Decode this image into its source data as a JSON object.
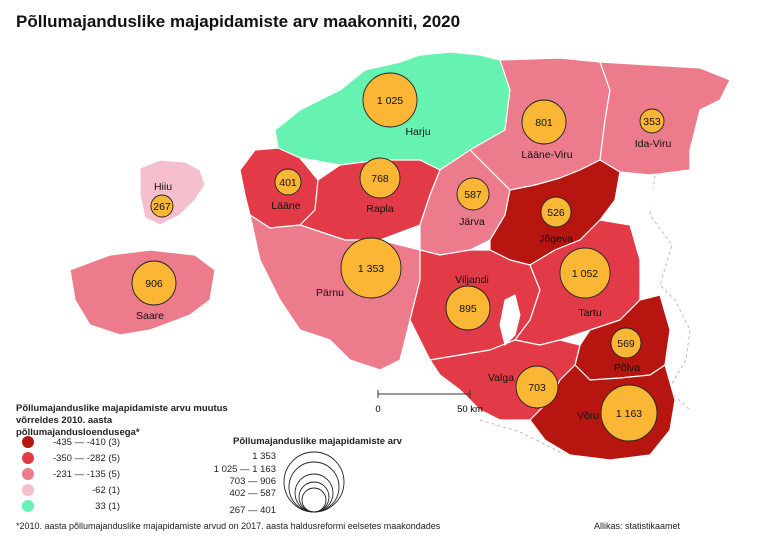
{
  "title": "Põllumajanduslike majapidamiste arv maakonniti, 2020",
  "colors": {
    "c1": "#b7150f",
    "c2": "#e23b47",
    "c3": "#ec7b8c",
    "c4": "#f6bfcd",
    "c5": "#66f2b0",
    "circle": "#fbb635",
    "lake": "#ffffff"
  },
  "counties": [
    {
      "name": "Harju",
      "value": "1 025",
      "class": "c5"
    },
    {
      "name": "Lääne-Viru",
      "value": "801",
      "class": "c3"
    },
    {
      "name": "Ida-Viru",
      "value": "353",
      "class": "c3"
    },
    {
      "name": "Hiiu",
      "value": "267",
      "class": "c4"
    },
    {
      "name": "Lääne",
      "value": "401",
      "class": "c2"
    },
    {
      "name": "Rapla",
      "value": "768",
      "class": "c2"
    },
    {
      "name": "Järva",
      "value": "587",
      "class": "c3"
    },
    {
      "name": "Jõgeva",
      "value": "526",
      "class": "c1"
    },
    {
      "name": "Saare",
      "value": "906",
      "class": "c3"
    },
    {
      "name": "Pärnu",
      "value": "1 353",
      "class": "c3"
    },
    {
      "name": "Viljandi",
      "value": "895",
      "class": "c2"
    },
    {
      "name": "Tartu",
      "value": "1 052",
      "class": "c2"
    },
    {
      "name": "Põlva",
      "value": "569",
      "class": "c1"
    },
    {
      "name": "Valga",
      "value": "703",
      "class": "c2"
    },
    {
      "name": "Võru",
      "value": "1 163",
      "class": "c1"
    }
  ],
  "scale_bar": {
    "start": "0",
    "end": "50 km"
  },
  "legend": {
    "title": "Põllumajanduslike majapidamiste arvu muutus võrreldes 2010. aasta põllumajandusloendusega*",
    "items": [
      {
        "label": "-435 — -410 (3)",
        "class": "c1"
      },
      {
        "label": "-350 — -282 (5)",
        "class": "c2"
      },
      {
        "label": "-231 — -135 (5)",
        "class": "c3"
      },
      {
        "label": "-62 (1)",
        "class": "c4"
      },
      {
        "label": "33 (1)",
        "class": "c5"
      }
    ]
  },
  "size_legend": {
    "title": "Põllumajanduslike majapidamiste arv",
    "items": [
      "1 353",
      "1 025 — 1 163",
      "703 —  906",
      "402 —  587",
      "267 —  401"
    ]
  },
  "footnote": "*2010. aasta põllumajanduslike majapidamiste arvud on 2017. aasta haldusreformi eelsetes maakondades",
  "source": "Allikas: statistikaamet"
}
